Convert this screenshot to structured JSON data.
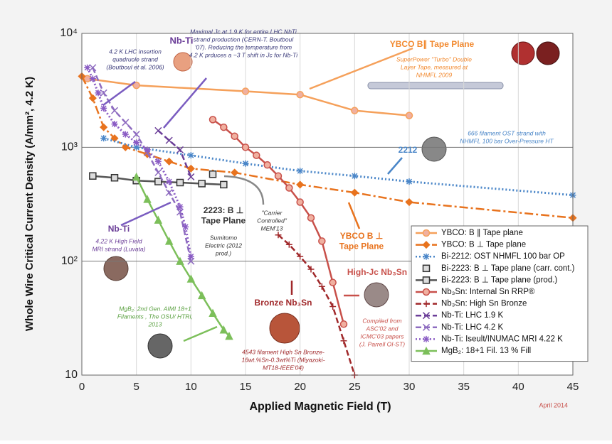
{
  "chart_data": {
    "type": "line",
    "xlabel": "Applied Magnetic Field (T)",
    "ylabel": "Whole Wire Critical Current Density (A/mm², 4.2 K)",
    "xlim": [
      0,
      45
    ],
    "xticks": [
      0,
      5,
      10,
      15,
      20,
      25,
      30,
      35,
      40,
      45
    ],
    "ylim": [
      10,
      10000
    ],
    "yscale": "log",
    "yticks": [
      10,
      {
        "value": 100,
        "label": "10²"
      },
      {
        "value": 1000,
        "label": "10³"
      },
      {
        "value": 10000,
        "label": "10⁴"
      }
    ],
    "grid": true,
    "legend": "lower right",
    "series": [
      {
        "name": "YBCO: B ∥ Tape plane",
        "color": "#f5a05a",
        "style": "solid",
        "marker": "circle",
        "x": [
          0.5,
          5,
          15,
          20,
          25,
          30
        ],
        "values": [
          4000,
          3500,
          3100,
          2900,
          2100,
          1900
        ]
      },
      {
        "name": "YBCO: B ⊥ Tape plane",
        "color": "#e8731e",
        "style": "dashdot",
        "marker": "diamond",
        "x": [
          0,
          1,
          2,
          3,
          4,
          6,
          8,
          10,
          14,
          20,
          25,
          30,
          45
        ],
        "values": [
          4200,
          2700,
          1500,
          1200,
          1000,
          870,
          750,
          650,
          600,
          470,
          400,
          330,
          240
        ]
      },
      {
        "name": "Bi-2212: OST NHMFL 100 bar OP",
        "color": "#4a86c8",
        "style": "dotted",
        "marker": "asterisk",
        "x": [
          2,
          5,
          10,
          15,
          20,
          25,
          30,
          45
        ],
        "values": [
          1200,
          1000,
          850,
          720,
          620,
          560,
          500,
          380
        ]
      },
      {
        "name": "Bi-2223: B ⊥ Tape plane (carr. cont.)",
        "color": "#aaaaaa",
        "style": "none",
        "marker": "square",
        "x": [
          12
        ],
        "values": [
          580
        ]
      },
      {
        "name": "Bi-2223: B ⊥ Tape plane (prod.)",
        "color": "#555555",
        "style": "solid",
        "marker": "square",
        "x": [
          1,
          3,
          5,
          7,
          9,
          11,
          13
        ],
        "values": [
          560,
          540,
          510,
          500,
          490,
          480,
          470
        ]
      },
      {
        "name": "Nb₃Sn: Internal Sn RRP®",
        "color": "#c8504a",
        "style": "solid",
        "marker": "circle",
        "x": [
          12,
          13,
          14,
          15,
          16,
          17,
          18,
          19,
          20,
          21,
          22,
          23,
          24
        ],
        "values": [
          1750,
          1500,
          1250,
          1000,
          850,
          700,
          560,
          440,
          330,
          240,
          150,
          65,
          28
        ]
      },
      {
        "name": "Nb₃Sn: High Sn Bronze",
        "color": "#a0282a",
        "style": "dash",
        "marker": "plus",
        "x": [
          18,
          19,
          20,
          21,
          22,
          23,
          24,
          25
        ],
        "values": [
          170,
          140,
          110,
          85,
          60,
          40,
          20,
          10
        ]
      },
      {
        "name": "Nb-Ti: LHC 1.9 K",
        "color": "#6b3e98",
        "style": "dash",
        "marker": "x",
        "x": [
          7,
          8,
          9,
          10
        ],
        "values": [
          1400,
          1150,
          950,
          550
        ]
      },
      {
        "name": "Nb-Ti: LHC 4.2 K",
        "color": "#8e6cc0",
        "style": "dash",
        "marker": "x",
        "x": [
          1,
          2,
          3,
          4,
          5,
          6,
          7,
          8,
          9,
          10
        ],
        "values": [
          5000,
          3000,
          2100,
          1650,
          1300,
          900,
          600,
          400,
          270,
          100
        ]
      },
      {
        "name": "Nb-Ti: Iseult/INUMAC MRI 4.22 K",
        "color": "#8a5cc4",
        "style": "dotted",
        "marker": "asterisk",
        "x": [
          0.5,
          1,
          1.5,
          2,
          3,
          4,
          5,
          6,
          7,
          8,
          9,
          9.5,
          10
        ],
        "values": [
          5000,
          4000,
          3000,
          2200,
          1600,
          1300,
          1100,
          950,
          750,
          500,
          300,
          200,
          110
        ]
      },
      {
        "name": "MgB₂: 18+1 Fil. 13 % Fill",
        "color": "#7cbf5a",
        "style": "solid",
        "marker": "triangle",
        "x": [
          5,
          6,
          7,
          8,
          9,
          10,
          11,
          12,
          13,
          13.5
        ],
        "values": [
          550,
          350,
          230,
          150,
          100,
          70,
          50,
          35,
          25,
          22
        ]
      }
    ],
    "annotations": [
      [
        "Nb-Ti"
      ],
      [
        "4.2 K LHC insertion",
        "quadruole strand",
        "(Boutboul et al. 2006)"
      ],
      [
        "Maximal Jc at 1.9 K for entire LHC NbTi",
        "strand production (CERN-T. Boutboul",
        "'07). Reducing the temperature from",
        "4.2 K prduces a ~3 T shift in Jc for Nb-Ti"
      ],
      [
        "YBCO B∥ Tape Plane"
      ],
      [
        "SuperPower \"Turbo\" Double",
        "Layer Tape, measured at",
        "NHMFL 2009"
      ],
      [
        "2212"
      ],
      [
        "666 filament OST strand with",
        "NHMFL 100 bar Over-Pressure HT"
      ],
      [
        "2223: B ⊥",
        "Tape Plane"
      ],
      [
        "Sumitomo",
        "Electric (2012",
        "prod.)"
      ],
      [
        "\"Carrier",
        "Controlled\"",
        "MEM'13"
      ],
      [
        "YBCO B ⊥",
        "Tape Plane"
      ],
      [
        "Nb-Ti"
      ],
      [
        "4.22 K High Field",
        "MRI strand (Luvata)"
      ],
      [
        "High-Jc Nb₃Sn"
      ],
      [
        "Bronze Nb₃Sn"
      ],
      [
        "Compiled from",
        "ASC'02 and",
        "ICMC'03 papers",
        "(J. Parrell OI-ST)"
      ],
      [
        "MgB₂: 2nd Gen. AIMI 18+1",
        "Filaments , The OSU/ HTRI,",
        "2013"
      ],
      [
        "4543 filament High Sn Bronze-",
        "16wt.%Sn-0.3wt%Ti (Miyazoki-",
        "MT18-IEEE'04)"
      ],
      [
        "April 2014"
      ]
    ]
  }
}
